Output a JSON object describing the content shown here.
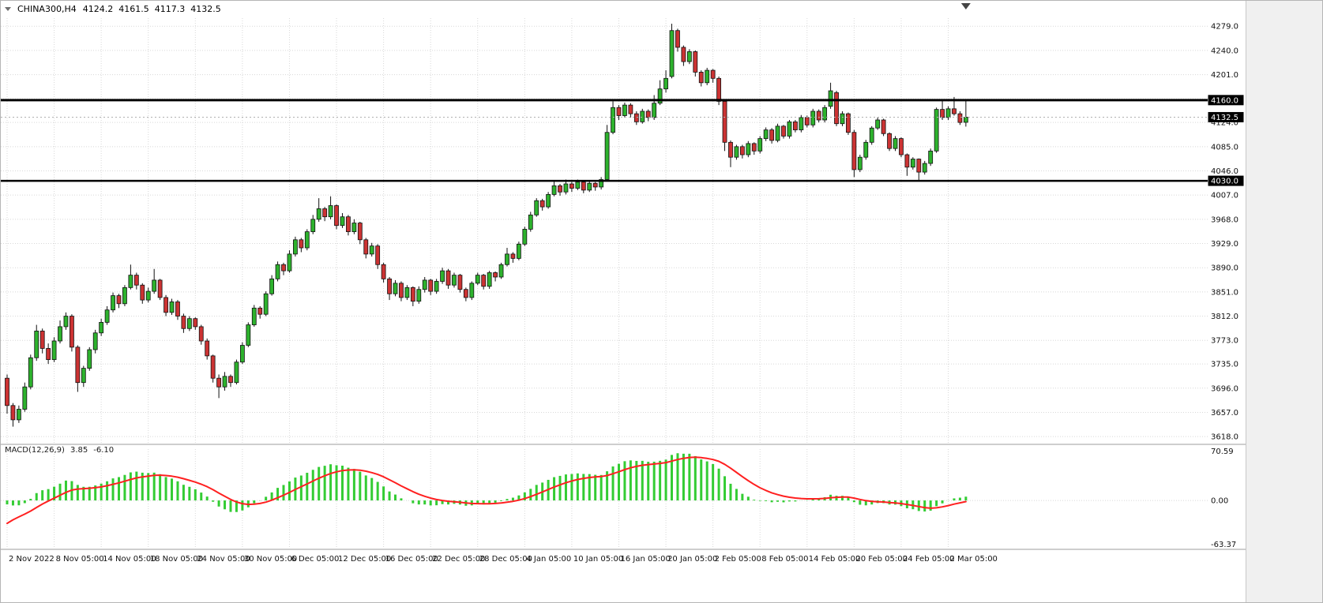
{
  "header": {
    "symbol": "CHINA300,H4",
    "open": "4124.2",
    "high": "4161.5",
    "low": "4117.3",
    "close": "4132.5"
  },
  "indicator_label": {
    "name": "MACD(12,26,9)",
    "value_main": "3.85",
    "value_signal": "-6.10"
  },
  "price_axis": {
    "gridline_values": [
      4279,
      4240,
      4201,
      4162,
      4124,
      4085,
      4046,
      4007,
      3968,
      3929,
      3890,
      3851,
      3812,
      3773,
      3735,
      3696,
      3657,
      3618
    ]
  },
  "horizontal_lines": [
    {
      "price": 4160.0,
      "label": "4160.0",
      "thickness": 3
    },
    {
      "price": 4030.0,
      "label": "4030.0",
      "thickness": 2.5
    }
  ],
  "current_price": {
    "price": 4132.5,
    "label": "4132.5"
  },
  "macd_axis_labels": [
    "70.59",
    "0.00",
    "-63.37"
  ],
  "time_axis_labels": [
    "2 Nov 2022",
    "8 Nov 05:00",
    "14 Nov 05:00",
    "18 Nov 05:00",
    "24 Nov 05:00",
    "30 Nov 05:00",
    "6 Dec 05:00",
    "12 Dec 05:00",
    "16 Dec 05:00",
    "22 Dec 05:00",
    "28 Dec 05:00",
    "4 Jan 05:00",
    "10 Jan 05:00",
    "16 Jan 05:00",
    "20 Jan 05:00",
    "2 Feb 05:00",
    "8 Feb 05:00",
    "14 Feb 05:00",
    "20 Feb 05:00",
    "24 Feb 05:00",
    "2 Mar 05:00"
  ],
  "colors": {
    "bull": "#2db22d",
    "bear": "#cc3333",
    "wick": "#111111",
    "grid": "#d8d8d8",
    "hline": "#000000",
    "bid_line": "#b0b0b0",
    "macd_hist": "#33cc33",
    "macd_signal": "#ff2020",
    "axis_text": "#111111",
    "box_bg": "#000000",
    "box_text": "#ffffff",
    "separator": "#9c9c9c",
    "panel": "#f0f0f0",
    "panel_border": "#c8c8c8",
    "shift_marker": "#444444"
  },
  "chart_data": {
    "type": "candlestick",
    "symbol": "CHINA300",
    "timeframe": "H4",
    "title": "CHINA300,H4",
    "price_range": [
      3608,
      4292
    ],
    "last_bar": {
      "open": 4124.2,
      "high": 4161.5,
      "low": 4117.3,
      "close": 4132.5
    },
    "ohlc": [
      [
        3712,
        3718,
        3655,
        3668
      ],
      [
        3668,
        3672,
        3634,
        3645
      ],
      [
        3645,
        3668,
        3640,
        3662
      ],
      [
        3662,
        3705,
        3658,
        3698
      ],
      [
        3698,
        3750,
        3694,
        3745
      ],
      [
        3745,
        3798,
        3740,
        3788
      ],
      [
        3788,
        3792,
        3752,
        3760
      ],
      [
        3760,
        3768,
        3735,
        3742
      ],
      [
        3742,
        3778,
        3738,
        3772
      ],
      [
        3772,
        3805,
        3768,
        3795
      ],
      [
        3795,
        3818,
        3790,
        3812
      ],
      [
        3812,
        3815,
        3755,
        3762
      ],
      [
        3762,
        3765,
        3690,
        3705
      ],
      [
        3705,
        3732,
        3698,
        3728
      ],
      [
        3728,
        3762,
        3724,
        3758
      ],
      [
        3758,
        3790,
        3752,
        3785
      ],
      [
        3785,
        3808,
        3780,
        3802
      ],
      [
        3802,
        3828,
        3798,
        3822
      ],
      [
        3822,
        3850,
        3818,
        3845
      ],
      [
        3845,
        3848,
        3825,
        3832
      ],
      [
        3832,
        3862,
        3828,
        3858
      ],
      [
        3858,
        3895,
        3855,
        3878
      ],
      [
        3878,
        3882,
        3855,
        3862
      ],
      [
        3862,
        3865,
        3832,
        3838
      ],
      [
        3838,
        3858,
        3834,
        3852
      ],
      [
        3852,
        3888,
        3848,
        3870
      ],
      [
        3870,
        3872,
        3838,
        3842
      ],
      [
        3842,
        3846,
        3812,
        3818
      ],
      [
        3818,
        3840,
        3814,
        3835
      ],
      [
        3835,
        3838,
        3806,
        3812
      ],
      [
        3812,
        3816,
        3785,
        3792
      ],
      [
        3792,
        3812,
        3788,
        3808
      ],
      [
        3808,
        3810,
        3790,
        3795
      ],
      [
        3795,
        3798,
        3766,
        3772
      ],
      [
        3772,
        3776,
        3742,
        3748
      ],
      [
        3748,
        3750,
        3705,
        3712
      ],
      [
        3712,
        3718,
        3680,
        3698
      ],
      [
        3698,
        3722,
        3692,
        3715
      ],
      [
        3715,
        3718,
        3698,
        3705
      ],
      [
        3705,
        3742,
        3702,
        3738
      ],
      [
        3738,
        3770,
        3735,
        3765
      ],
      [
        3765,
        3802,
        3762,
        3798
      ],
      [
        3798,
        3830,
        3795,
        3825
      ],
      [
        3825,
        3828,
        3808,
        3815
      ],
      [
        3815,
        3852,
        3812,
        3848
      ],
      [
        3848,
        3878,
        3845,
        3872
      ],
      [
        3872,
        3900,
        3868,
        3895
      ],
      [
        3895,
        3898,
        3878,
        3885
      ],
      [
        3885,
        3918,
        3882,
        3912
      ],
      [
        3912,
        3940,
        3908,
        3935
      ],
      [
        3935,
        3938,
        3915,
        3922
      ],
      [
        3922,
        3952,
        3918,
        3948
      ],
      [
        3948,
        3975,
        3944,
        3968
      ],
      [
        3968,
        4002,
        3964,
        3985
      ],
      [
        3985,
        3988,
        3965,
        3972
      ],
      [
        3972,
        4005,
        3968,
        3990
      ],
      [
        3990,
        3992,
        3952,
        3958
      ],
      [
        3958,
        3978,
        3954,
        3972
      ],
      [
        3972,
        3975,
        3942,
        3948
      ],
      [
        3948,
        3968,
        3944,
        3962
      ],
      [
        3962,
        3964,
        3928,
        3935
      ],
      [
        3935,
        3938,
        3905,
        3912
      ],
      [
        3912,
        3930,
        3908,
        3925
      ],
      [
        3925,
        3928,
        3888,
        3895
      ],
      [
        3895,
        3898,
        3866,
        3872
      ],
      [
        3872,
        3875,
        3838,
        3848
      ],
      [
        3848,
        3870,
        3844,
        3865
      ],
      [
        3865,
        3868,
        3836,
        3842
      ],
      [
        3842,
        3862,
        3838,
        3858
      ],
      [
        3858,
        3860,
        3828,
        3836
      ],
      [
        3836,
        3860,
        3832,
        3855
      ],
      [
        3855,
        3875,
        3850,
        3870
      ],
      [
        3870,
        3872,
        3846,
        3852
      ],
      [
        3852,
        3872,
        3848,
        3868
      ],
      [
        3868,
        3890,
        3864,
        3885
      ],
      [
        3885,
        3888,
        3856,
        3862
      ],
      [
        3862,
        3882,
        3858,
        3878
      ],
      [
        3878,
        3880,
        3850,
        3855
      ],
      [
        3855,
        3858,
        3836,
        3842
      ],
      [
        3842,
        3868,
        3838,
        3865
      ],
      [
        3865,
        3882,
        3862,
        3878
      ],
      [
        3878,
        3880,
        3855,
        3860
      ],
      [
        3860,
        3885,
        3856,
        3882
      ],
      [
        3882,
        3884,
        3868,
        3875
      ],
      [
        3875,
        3898,
        3872,
        3895
      ],
      [
        3895,
        3922,
        3892,
        3912
      ],
      [
        3912,
        3915,
        3898,
        3905
      ],
      [
        3905,
        3932,
        3902,
        3928
      ],
      [
        3928,
        3956,
        3925,
        3952
      ],
      [
        3952,
        3980,
        3948,
        3975
      ],
      [
        3975,
        4002,
        3972,
        3998
      ],
      [
        3998,
        4001,
        3982,
        3988
      ],
      [
        3988,
        4012,
        3985,
        4008
      ],
      [
        4008,
        4030,
        4005,
        4022
      ],
      [
        4022,
        4025,
        4006,
        4012
      ],
      [
        4012,
        4032,
        4008,
        4025
      ],
      [
        4025,
        4028,
        4012,
        4018
      ],
      [
        4018,
        4032,
        4015,
        4028
      ],
      [
        4028,
        4030,
        4010,
        4015
      ],
      [
        4015,
        4030,
        4012,
        4026
      ],
      [
        4026,
        4028,
        4014,
        4020
      ],
      [
        4020,
        4036,
        4016,
        4032
      ],
      [
        4032,
        4120,
        4030,
        4108
      ],
      [
        4108,
        4158,
        4105,
        4148
      ],
      [
        4148,
        4152,
        4128,
        4135
      ],
      [
        4135,
        4156,
        4132,
        4152
      ],
      [
        4152,
        4155,
        4132,
        4138
      ],
      [
        4138,
        4142,
        4120,
        4125
      ],
      [
        4125,
        4146,
        4122,
        4142
      ],
      [
        4142,
        4145,
        4126,
        4132
      ],
      [
        4132,
        4168,
        4128,
        4155
      ],
      [
        4155,
        4192,
        4152,
        4178
      ],
      [
        4178,
        4208,
        4172,
        4195
      ],
      [
        4198,
        4283,
        4195,
        4272
      ],
      [
        4272,
        4275,
        4238,
        4245
      ],
      [
        4245,
        4248,
        4215,
        4222
      ],
      [
        4222,
        4242,
        4218,
        4238
      ],
      [
        4238,
        4240,
        4198,
        4205
      ],
      [
        4205,
        4208,
        4182,
        4188
      ],
      [
        4188,
        4212,
        4184,
        4208
      ],
      [
        4208,
        4210,
        4188,
        4195
      ],
      [
        4195,
        4198,
        4152,
        4158
      ],
      [
        4158,
        4160,
        4078,
        4092
      ],
      [
        4092,
        4095,
        4052,
        4068
      ],
      [
        4068,
        4088,
        4064,
        4085
      ],
      [
        4085,
        4088,
        4066,
        4072
      ],
      [
        4072,
        4094,
        4068,
        4090
      ],
      [
        4090,
        4092,
        4072,
        4078
      ],
      [
        4078,
        4102,
        4074,
        4098
      ],
      [
        4098,
        4116,
        4094,
        4112
      ],
      [
        4112,
        4115,
        4090,
        4095
      ],
      [
        4095,
        4122,
        4092,
        4118
      ],
      [
        4118,
        4120,
        4098,
        4102
      ],
      [
        4102,
        4128,
        4098,
        4125
      ],
      [
        4125,
        4128,
        4108,
        4112
      ],
      [
        4112,
        4136,
        4108,
        4132
      ],
      [
        4132,
        4135,
        4116,
        4120
      ],
      [
        4120,
        4146,
        4116,
        4142
      ],
      [
        4142,
        4145,
        4124,
        4128
      ],
      [
        4128,
        4152,
        4124,
        4148
      ],
      [
        4150,
        4188,
        4146,
        4175
      ],
      [
        4172,
        4175,
        4118,
        4122
      ],
      [
        4122,
        4142,
        4118,
        4138
      ],
      [
        4138,
        4140,
        4104,
        4108
      ],
      [
        4108,
        4112,
        4036,
        4048
      ],
      [
        4048,
        4072,
        4044,
        4068
      ],
      [
        4068,
        4096,
        4064,
        4092
      ],
      [
        4092,
        4118,
        4088,
        4115
      ],
      [
        4115,
        4132,
        4112,
        4128
      ],
      [
        4128,
        4130,
        4102,
        4106
      ],
      [
        4106,
        4108,
        4078,
        4082
      ],
      [
        4082,
        4102,
        4078,
        4098
      ],
      [
        4098,
        4100,
        4068,
        4072
      ],
      [
        4072,
        4074,
        4038,
        4052
      ],
      [
        4052,
        4068,
        4048,
        4065
      ],
      [
        4065,
        4066,
        4030,
        4044
      ],
      [
        4044,
        4062,
        4040,
        4058
      ],
      [
        4058,
        4082,
        4054,
        4078
      ],
      [
        4078,
        4148,
        4075,
        4145
      ],
      [
        4145,
        4160,
        4128,
        4132
      ],
      [
        4132,
        4150,
        4128,
        4146
      ],
      [
        4146,
        4165,
        4135,
        4138
      ],
      [
        4138,
        4142,
        4120,
        4124
      ],
      [
        4124.2,
        4161.5,
        4117.3,
        4132.5
      ]
    ],
    "indicator": {
      "type": "MACD",
      "params": [
        12,
        26,
        9
      ],
      "current_macd": 3.85,
      "current_signal": -6.1,
      "display_range": [
        -63.37,
        70.59
      ]
    }
  }
}
